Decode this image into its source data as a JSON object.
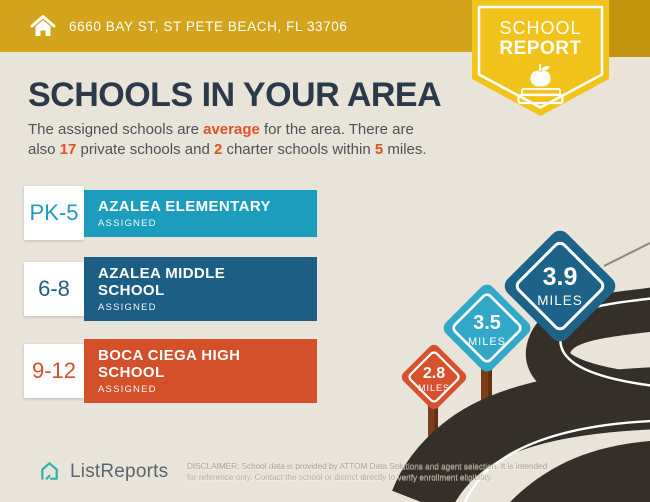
{
  "header": {
    "address": "6660 BAY ST, ST PETE BEACH, FL 33706"
  },
  "badge": {
    "line1": "SCHOOL",
    "line2": "REPORT"
  },
  "title": "SCHOOLS IN YOUR AREA",
  "subtitle": {
    "segments": [
      {
        "text": "The assigned schools are ",
        "highlight": false
      },
      {
        "text": "average",
        "highlight": true
      },
      {
        "text": " for the area. There are also ",
        "highlight": false
      },
      {
        "text": "17",
        "highlight": true
      },
      {
        "text": " private schools and ",
        "highlight": false
      },
      {
        "text": "2",
        "highlight": true
      },
      {
        "text": " charter schools within ",
        "highlight": false
      },
      {
        "text": "5",
        "highlight": true
      },
      {
        "text": " miles.",
        "highlight": false
      }
    ]
  },
  "schools": [
    {
      "grades": "PK-5",
      "name": "AZALEA ELEMENTARY",
      "status": "ASSIGNED",
      "color": "#1c9dbe"
    },
    {
      "grades": "6-8",
      "name": "AZALEA MIDDLE SCHOOL",
      "status": "ASSIGNED",
      "color": "#1d5f84"
    },
    {
      "grades": "9-12",
      "name": "BOCA CIEGA HIGH SCHOOL",
      "status": "ASSIGNED",
      "color": "#d3502a"
    }
  ],
  "signs": [
    {
      "value": "2.8",
      "label": "MILES",
      "color": "#d8502c"
    },
    {
      "value": "3.5",
      "label": "MILES",
      "color": "#31a8c8"
    },
    {
      "value": "3.9",
      "label": "MILES",
      "color": "#1d6389"
    }
  ],
  "footer": {
    "brand": "ListReports",
    "disclaimer_line1": "DISCLAIMER: School data is provided by ATTOM Data Solutions and agent selection. It is intended",
    "disclaimer_line2": "for reference only. Contact the school or district directly to verify enrollment eligibility."
  },
  "colors": {
    "background": "#e9e4d9",
    "header_gold": "#d2a31b",
    "badge_yellow": "#f2c31a",
    "title_navy": "#2b3948",
    "accent_orange": "#dd5328",
    "road": "#343029",
    "post_brown": "#7a3e1b",
    "brand_teal": "#2cb1ac"
  }
}
